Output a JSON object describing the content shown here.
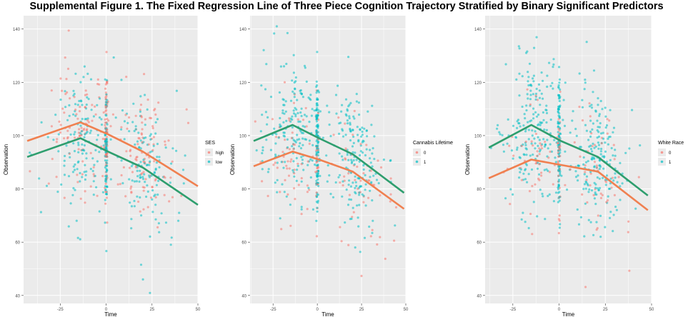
{
  "figure": {
    "title": "Supplemental Figure 1. The Fixed Regression Line of Three Piece Cognition Trajectory Stratified by Binary Significant Predictors"
  },
  "colors": {
    "panel_bg": "#ebebeb",
    "grid": "#ffffff",
    "group_a": "#f8766d",
    "group_b": "#00bfc4",
    "line_a": "#f08050",
    "line_b": "#2e9e6e"
  },
  "chart_data": [
    {
      "type": "scatter",
      "xlabel": "Time",
      "ylabel": "Observation",
      "xlim": [
        -45,
        50
      ],
      "ylim": [
        37,
        145
      ],
      "x_ticks": [
        -25,
        0,
        25,
        50
      ],
      "x_tick_labels": [
        "-25",
        "0",
        "25",
        "50"
      ],
      "y_ticks": [
        40,
        60,
        80,
        100,
        120,
        140
      ],
      "y_tick_labels": [
        "40",
        "60",
        "80",
        "100",
        "120",
        "140"
      ],
      "grid": true,
      "legend": {
        "title": "SES",
        "position": "right"
      },
      "series": [
        {
          "name": "high",
          "color": "#f8766d",
          "line_x": [
            -43,
            -14,
            1,
            20,
            50
          ],
          "line_y": [
            98,
            105,
            100.5,
            94,
            81
          ]
        },
        {
          "name": "low",
          "color": "#00bfc4",
          "line_x": [
            -43,
            -14,
            1,
            20,
            50
          ],
          "line_y": [
            92,
            99,
            94,
            88,
            74
          ]
        }
      ]
    },
    {
      "type": "scatter",
      "xlabel": "Time",
      "ylabel": "Observation",
      "xlim": [
        -38,
        50
      ],
      "ylim": [
        37,
        145
      ],
      "x_ticks": [
        -25,
        0,
        25,
        50
      ],
      "x_tick_labels": [
        "-25",
        "0",
        "25",
        "50"
      ],
      "y_ticks": [
        40,
        60,
        80,
        100,
        120,
        140
      ],
      "y_tick_labels": [
        "40",
        "60",
        "80",
        "100",
        "120",
        "140"
      ],
      "grid": true,
      "legend": {
        "title": "Cannabis Lifetime",
        "position": "right"
      },
      "series": [
        {
          "name": "0",
          "color": "#f8766d",
          "line_x": [
            -36,
            -14,
            1,
            20,
            49
          ],
          "line_y": [
            88.5,
            94,
            91,
            86.5,
            72.5
          ]
        },
        {
          "name": "1",
          "color": "#00bfc4",
          "line_x": [
            -36,
            -14,
            1,
            20,
            49
          ],
          "line_y": [
            98,
            104,
            99,
            93,
            78.5
          ]
        }
      ]
    },
    {
      "type": "scatter",
      "xlabel": "Time",
      "ylabel": "Observation",
      "xlim": [
        -40,
        50
      ],
      "ylim": [
        37,
        145
      ],
      "x_ticks": [
        -25,
        0,
        25,
        50
      ],
      "x_tick_labels": [
        "-25",
        "0",
        "25",
        "50"
      ],
      "y_ticks": [
        40,
        60,
        80,
        100,
        120,
        140
      ],
      "y_tick_labels": [
        "40",
        "60",
        "80",
        "100",
        "120",
        "140"
      ],
      "grid": true,
      "legend": {
        "title": "White Race",
        "position": "right"
      },
      "series": [
        {
          "name": "0",
          "color": "#f8766d",
          "line_x": [
            -38,
            -15,
            1,
            21,
            48
          ],
          "line_y": [
            84,
            91,
            89,
            86.5,
            72
          ]
        },
        {
          "name": "1",
          "color": "#00bfc4",
          "line_x": [
            -38,
            -15,
            1,
            21,
            48
          ],
          "line_y": [
            95.5,
            104,
            98,
            92,
            77.5
          ]
        }
      ]
    }
  ]
}
